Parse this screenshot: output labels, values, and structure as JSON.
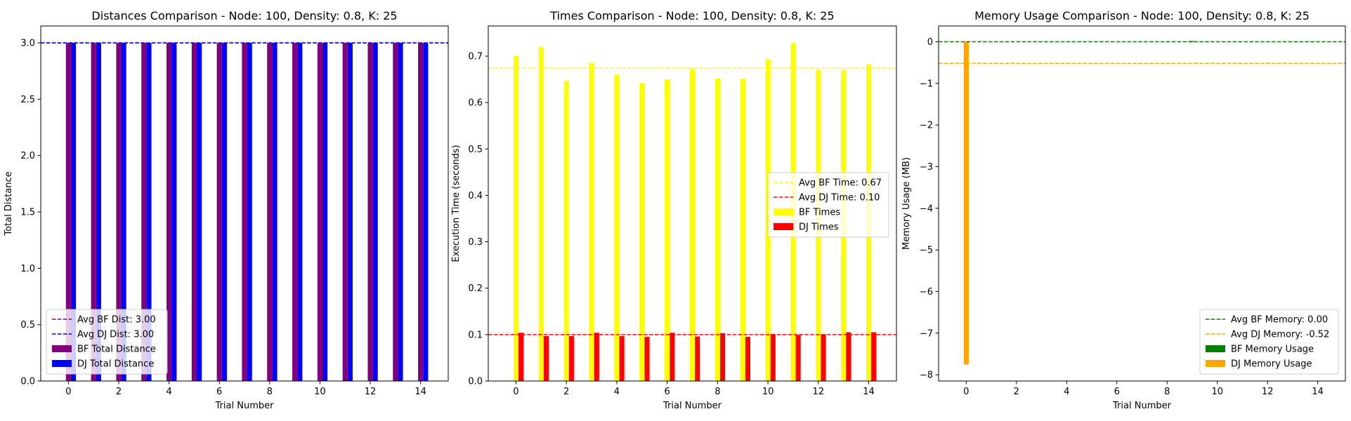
{
  "chart_data": [
    {
      "type": "bar",
      "title": "Distances Comparison - Node: 100, Density: 0.8, K: 25",
      "xlabel": "Trial Number",
      "ylabel": "Total Distance",
      "xlim": [
        -1.1,
        15.1
      ],
      "ylim": [
        0,
        3.15
      ],
      "xticks": [
        0,
        2,
        4,
        6,
        8,
        10,
        12,
        14
      ],
      "yticks": [
        0.0,
        0.5,
        1.0,
        1.5,
        2.0,
        2.5,
        3.0
      ],
      "ytick_format": 1,
      "x": [
        0,
        1,
        2,
        3,
        4,
        5,
        6,
        7,
        8,
        9,
        10,
        11,
        12,
        13,
        14
      ],
      "bar_width": 0.2,
      "series": [
        {
          "name": "BF Total Distance",
          "color": "#800080",
          "offset": 0,
          "values": [
            3,
            3,
            3,
            3,
            3,
            3,
            3,
            3,
            3,
            3,
            3,
            3,
            3,
            3,
            3
          ]
        },
        {
          "name": "DJ Total Distance",
          "color": "#0000ff",
          "offset": 0.2,
          "values": [
            3,
            3,
            3,
            3,
            3,
            3,
            3,
            3,
            3,
            3,
            3,
            3,
            3,
            3,
            3
          ]
        }
      ],
      "hlines": [
        {
          "name": "Avg BF Dist: 3.00",
          "value": 3.0,
          "color": "#800080"
        },
        {
          "name": "Avg DJ Dist: 3.00",
          "value": 3.0,
          "color": "#0000ff"
        }
      ],
      "legend": "lower-left"
    },
    {
      "type": "bar",
      "title": "Times Comparison - Node: 100, Density: 0.8, K: 25",
      "xlabel": "Trial Number",
      "ylabel": "Execution Time (seconds)",
      "xlim": [
        -1.1,
        15.1
      ],
      "ylim": [
        0,
        0.765
      ],
      "xticks": [
        0,
        2,
        4,
        6,
        8,
        10,
        12,
        14
      ],
      "yticks": [
        0.0,
        0.1,
        0.2,
        0.3,
        0.4,
        0.5,
        0.6,
        0.7
      ],
      "ytick_format": 1,
      "x": [
        0,
        1,
        2,
        3,
        4,
        5,
        6,
        7,
        8,
        9,
        10,
        11,
        12,
        13,
        14
      ],
      "bar_width": 0.2,
      "series": [
        {
          "name": "BF Times",
          "color": "#ffff00",
          "offset": 0,
          "values": [
            0.7,
            0.72,
            0.647,
            0.685,
            0.66,
            0.642,
            0.65,
            0.672,
            0.652,
            0.651,
            0.693,
            0.728,
            0.67,
            0.67,
            0.682
          ]
        },
        {
          "name": "DJ Times",
          "color": "#ff0000",
          "offset": 0.2,
          "values": [
            0.104,
            0.097,
            0.097,
            0.104,
            0.097,
            0.095,
            0.104,
            0.096,
            0.103,
            0.095,
            0.101,
            0.099,
            0.1,
            0.105,
            0.105
          ]
        }
      ],
      "hlines": [
        {
          "name": "Avg BF Time: 0.67",
          "value": 0.674,
          "color": "#ffff00"
        },
        {
          "name": "Avg DJ Time: 0.10",
          "value": 0.1,
          "color": "#ff0000"
        }
      ],
      "legend": "center-right"
    },
    {
      "type": "bar",
      "title": "Memory Usage Comparison - Node: 100, Density: 0.8, K: 25",
      "xlabel": "Trial Number",
      "ylabel": "Memory Usage (MB)",
      "xlim": [
        -1.1,
        15.1
      ],
      "ylim": [
        -8.15,
        0.38
      ],
      "xticks": [
        0,
        2,
        4,
        6,
        8,
        10,
        12,
        14
      ],
      "yticks": [
        0,
        -1,
        -2,
        -3,
        -4,
        -5,
        -6,
        -7,
        -8
      ],
      "ytick_format": 0,
      "x": [
        0,
        1,
        2,
        3,
        4,
        5,
        6,
        7,
        8,
        9,
        10,
        11,
        12,
        13,
        14
      ],
      "bar_width": 0.2,
      "series": [
        {
          "name": "BF Memory Usage",
          "color": "#008000",
          "offset": 0,
          "values": [
            0,
            0,
            0,
            0,
            0,
            0,
            0,
            0,
            0,
            0.02,
            0,
            0,
            0,
            0,
            0
          ]
        },
        {
          "name": "DJ Memory Usage",
          "color": "#ffa500",
          "offset": 0,
          "values": [
            -7.75,
            0,
            0,
            0,
            0,
            0,
            0,
            0,
            0,
            0,
            0,
            0,
            0,
            0,
            0
          ]
        }
      ],
      "hlines": [
        {
          "name": "Avg BF Memory: 0.00",
          "value": 0.0,
          "color": "#008000"
        },
        {
          "name": "Avg DJ Memory: -0.52",
          "value": -0.52,
          "color": "#ffa500"
        }
      ],
      "legend": "lower-right"
    }
  ]
}
